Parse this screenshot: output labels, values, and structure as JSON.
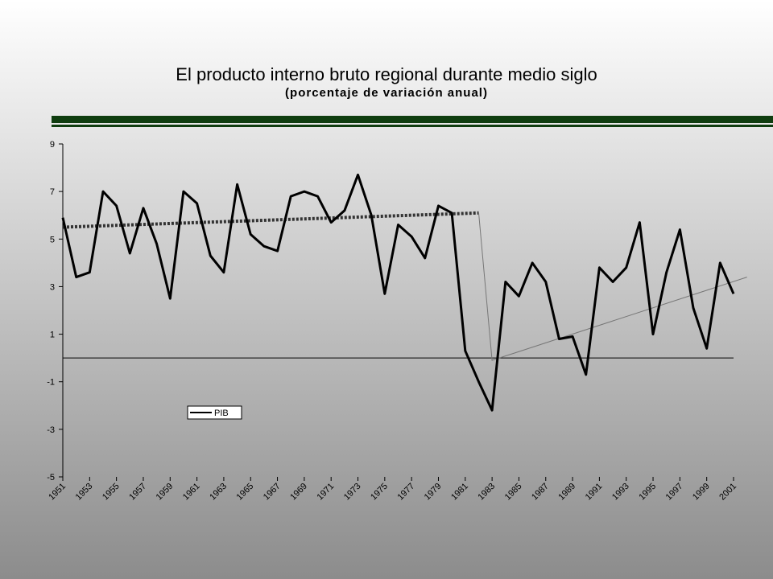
{
  "chart_data": {
    "type": "line",
    "title": "El producto interno bruto regional durante medio siglo",
    "subtitle": "(porcentaje de variación anual)",
    "x": [
      1951,
      1952,
      1953,
      1954,
      1955,
      1956,
      1957,
      1958,
      1959,
      1960,
      1961,
      1962,
      1963,
      1964,
      1965,
      1966,
      1967,
      1968,
      1969,
      1970,
      1971,
      1972,
      1973,
      1974,
      1975,
      1976,
      1977,
      1978,
      1979,
      1980,
      1981,
      1982,
      1983,
      1984,
      1985,
      1986,
      1987,
      1988,
      1989,
      1990,
      1991,
      1992,
      1993,
      1994,
      1995,
      1996,
      1997,
      1998,
      1999,
      2000,
      2001
    ],
    "series": [
      {
        "name": "PIB",
        "color": "#000000",
        "values": [
          5.9,
          3.4,
          3.6,
          7.0,
          6.4,
          4.4,
          6.3,
          4.8,
          2.5,
          7.0,
          6.5,
          4.3,
          3.6,
          7.3,
          5.2,
          4.7,
          4.5,
          6.8,
          7.0,
          6.8,
          5.7,
          6.2,
          7.7,
          6.0,
          2.7,
          5.6,
          5.1,
          4.2,
          6.4,
          6.1,
          0.3,
          -1.0,
          -2.2,
          3.2,
          2.6,
          4.0,
          3.2,
          0.8,
          0.9,
          -0.7,
          3.8,
          3.2,
          3.8,
          5.7,
          1.0,
          3.6,
          5.4,
          2.1,
          0.4,
          4.0,
          2.7
        ]
      }
    ],
    "trend_lines": [
      {
        "x": [
          1951,
          1982
        ],
        "values": [
          5.5,
          6.1
        ],
        "style": "dotted",
        "color": "#333333"
      },
      {
        "x": [
          1982,
          1983,
          2002
        ],
        "values": [
          6.1,
          -0.1,
          3.4
        ],
        "style": "thin",
        "color": "#777777"
      }
    ],
    "xlim": [
      1951,
      2001
    ],
    "xticks": [
      1951,
      1953,
      1955,
      1957,
      1959,
      1961,
      1963,
      1965,
      1967,
      1969,
      1971,
      1973,
      1975,
      1977,
      1979,
      1981,
      1983,
      1985,
      1987,
      1989,
      1991,
      1993,
      1995,
      1997,
      1999,
      2001
    ],
    "ylim": [
      -5,
      9
    ],
    "yticks": [
      -5,
      -3,
      -1,
      1,
      3,
      5,
      7,
      9
    ],
    "zero_line": true,
    "legend": "lower left"
  }
}
